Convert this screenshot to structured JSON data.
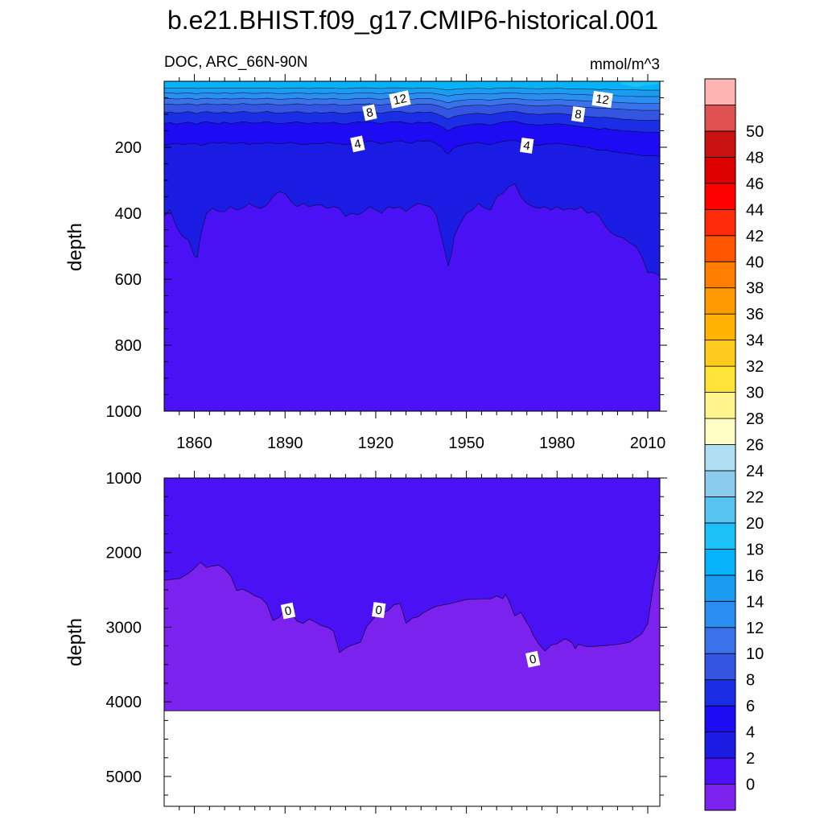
{
  "chart_data": [
    {
      "type": "contour",
      "title": "b.e21.BHIST.f09_g17.CMIP6-historical.001",
      "subtitle_left": "DOC, ARC_66N-90N",
      "subtitle_right": "mmol/m^3",
      "ylabel": "depth",
      "xlim": [
        1850,
        2014
      ],
      "ylim": [
        0,
        1000
      ],
      "x_ticks": [
        1860,
        1890,
        1920,
        1950,
        1980,
        2010
      ],
      "x_tick_labels": [
        "1860",
        "1890",
        "1920",
        "1950",
        "1980",
        "2010"
      ],
      "y_ticks": [
        200,
        400,
        600,
        800,
        1000
      ],
      "y_tick_labels": [
        "200",
        "400",
        "600",
        "800",
        "1000"
      ],
      "contour_labels": [
        {
          "text": "12",
          "year": 1928,
          "depth": 55
        },
        {
          "text": "12",
          "year": 1995,
          "depth": 55
        },
        {
          "text": "8",
          "year": 1918,
          "depth": 95
        },
        {
          "text": "8",
          "year": 1987,
          "depth": 100
        },
        {
          "text": "4",
          "year": 1914,
          "depth": 190
        },
        {
          "text": "4",
          "year": 1970,
          "depth": 195
        }
      ],
      "contour_profiles": {
        "x": [
          1850,
          1852,
          1854,
          1856,
          1858,
          1860,
          1861,
          1862,
          1864,
          1866,
          1868,
          1870,
          1872,
          1874,
          1876,
          1878,
          1880,
          1882,
          1884,
          1886,
          1888,
          1890,
          1892,
          1894,
          1896,
          1898,
          1900,
          1902,
          1904,
          1906,
          1908,
          1910,
          1912,
          1914,
          1916,
          1918,
          1920,
          1922,
          1924,
          1926,
          1928,
          1930,
          1932,
          1934,
          1936,
          1938,
          1940,
          1942,
          1943,
          1944,
          1945,
          1946,
          1948,
          1950,
          1952,
          1954,
          1956,
          1958,
          1960,
          1962,
          1964,
          1966,
          1968,
          1970,
          1972,
          1974,
          1976,
          1978,
          1980,
          1982,
          1984,
          1986,
          1988,
          1990,
          1992,
          1994,
          1996,
          1998,
          2000,
          2002,
          2004,
          2006,
          2008,
          2010,
          2012,
          2014
        ],
        "d2": [
          410,
          390,
          440,
          470,
          480,
          530,
          535,
          470,
          400,
          385,
          395,
          395,
          380,
          390,
          385,
          370,
          380,
          385,
          375,
          350,
          335,
          340,
          365,
          380,
          370,
          380,
          375,
          375,
          385,
          380,
          385,
          410,
          400,
          405,
          395,
          380,
          390,
          400,
          380,
          385,
          380,
          395,
          380,
          370,
          375,
          380,
          405,
          480,
          520,
          560,
          525,
          470,
          430,
          400,
          390,
          370,
          385,
          390,
          350,
          340,
          320,
          310,
          350,
          370,
          380,
          385,
          380,
          390,
          380,
          390,
          385,
          390,
          380,
          400,
          395,
          410,
          440,
          460,
          470,
          475,
          490,
          500,
          530,
          580,
          580,
          590
        ],
        "d4": [
          195,
          190,
          188,
          192,
          190,
          188,
          190,
          195,
          190,
          185,
          188,
          185,
          190,
          188,
          186,
          192,
          188,
          190,
          185,
          188,
          190,
          188,
          185,
          190,
          192,
          190,
          188,
          190,
          185,
          188,
          190,
          193,
          190,
          187,
          185,
          180,
          185,
          190,
          185,
          183,
          180,
          185,
          188,
          180,
          182,
          180,
          190,
          200,
          215,
          220,
          210,
          200,
          195,
          190,
          188,
          185,
          190,
          193,
          186,
          182,
          180,
          178,
          185,
          190,
          192,
          195,
          190,
          190,
          188,
          190,
          193,
          195,
          198,
          200,
          205,
          210,
          208,
          213,
          215,
          218,
          220,
          222,
          225,
          225,
          225,
          228
        ],
        "d6": [
          128,
          125,
          130,
          127,
          124,
          128,
          130,
          125,
          122,
          126,
          128,
          124,
          128,
          126,
          122,
          125,
          127,
          125,
          122,
          126,
          128,
          127,
          125,
          123,
          126,
          128,
          125,
          127,
          126,
          124,
          128,
          130,
          126,
          123,
          124,
          122,
          126,
          128,
          124,
          123,
          122,
          126,
          128,
          124,
          126,
          124,
          130,
          138,
          145,
          150,
          145,
          140,
          136,
          133,
          130,
          128,
          130,
          133,
          128,
          124,
          122,
          121,
          126,
          130,
          131,
          133,
          131,
          130,
          128,
          130,
          133,
          135,
          138,
          140,
          142,
          145,
          143,
          146,
          148,
          150,
          151,
          152,
          154,
          154,
          154,
          155
        ],
        "d8": [
          95,
          93,
          96,
          95,
          92,
          96,
          98,
          94,
          92,
          95,
          96,
          93,
          96,
          94,
          91,
          94,
          96,
          94,
          91,
          95,
          97,
          95,
          94,
          92,
          95,
          97,
          94,
          96,
          95,
          93,
          97,
          98,
          95,
          93,
          93,
          92,
          95,
          97,
          93,
          92,
          91,
          95,
          97,
          93,
          95,
          93,
          98,
          105,
          110,
          114,
          110,
          106,
          103,
          100,
          98,
          97,
          99,
          101,
          97,
          94,
          92,
          91,
          95,
          98,
          99,
          101,
          99,
          98,
          97,
          99,
          101,
          103,
          105,
          107,
          108,
          110,
          109,
          111,
          113,
          115,
          116,
          117,
          118,
          118,
          118,
          119
        ],
        "d10": [
          70,
          69,
          71,
          70,
          68,
          71,
          73,
          70,
          68,
          70,
          71,
          69,
          71,
          70,
          67,
          70,
          71,
          70,
          68,
          70,
          72,
          71,
          70,
          68,
          70,
          72,
          70,
          71,
          71,
          69,
          72,
          73,
          71,
          69,
          69,
          68,
          71,
          72,
          69,
          68,
          68,
          71,
          72,
          69,
          70,
          69,
          73,
          78,
          82,
          85,
          82,
          79,
          76,
          74,
          73,
          72,
          73,
          75,
          72,
          70,
          68,
          68,
          71,
          73,
          74,
          75,
          74,
          73,
          72,
          73,
          75,
          76,
          78,
          79,
          80,
          82,
          81,
          83,
          84,
          85,
          86,
          87,
          88,
          88,
          88,
          88
        ],
        "d12": [
          53,
          52,
          54,
          53,
          51,
          54,
          55,
          53,
          51,
          53,
          54,
          52,
          54,
          53,
          51,
          53,
          54,
          53,
          51,
          53,
          55,
          54,
          53,
          51,
          53,
          55,
          53,
          54,
          54,
          52,
          55,
          56,
          54,
          52,
          52,
          51,
          54,
          55,
          52,
          51,
          51,
          54,
          55,
          52,
          53,
          52,
          56,
          60,
          63,
          65,
          63,
          60,
          58,
          56,
          55,
          55,
          56,
          57,
          55,
          53,
          52,
          52,
          54,
          56,
          56,
          57,
          56,
          56,
          55,
          56,
          57,
          58,
          59,
          60,
          61,
          62,
          62,
          63,
          64,
          65,
          66,
          66,
          67,
          67,
          67,
          67
        ],
        "d14": [
          36,
          35,
          37,
          36,
          35,
          37,
          38,
          36,
          35,
          36,
          37,
          35,
          37,
          36,
          34,
          36,
          37,
          36,
          35,
          36,
          38,
          37,
          36,
          35,
          36,
          38,
          36,
          37,
          37,
          35,
          38,
          38,
          37,
          35,
          35,
          35,
          37,
          38,
          35,
          35,
          34,
          37,
          38,
          35,
          36,
          35,
          38,
          41,
          43,
          45,
          43,
          41,
          40,
          38,
          38,
          37,
          38,
          39,
          37,
          36,
          35,
          35,
          37,
          38,
          38,
          39,
          38,
          38,
          37,
          38,
          39,
          40,
          40,
          41,
          42,
          43,
          42,
          43,
          44,
          45,
          45,
          46,
          46,
          46,
          46,
          46
        ],
        "d16": [
          21,
          20,
          21,
          21,
          20,
          21,
          22,
          21,
          20,
          21,
          21,
          20,
          21,
          21,
          20,
          21,
          21,
          21,
          20,
          21,
          22,
          21,
          21,
          20,
          21,
          22,
          21,
          21,
          21,
          20,
          22,
          22,
          21,
          20,
          20,
          20,
          21,
          22,
          20,
          20,
          20,
          21,
          22,
          20,
          21,
          20,
          22,
          24,
          25,
          26,
          25,
          24,
          23,
          22,
          22,
          21,
          22,
          23,
          21,
          21,
          20,
          20,
          21,
          22,
          22,
          23,
          22,
          22,
          21,
          22,
          23,
          23,
          23,
          24,
          24,
          25,
          24,
          25,
          25,
          26,
          26,
          26,
          27,
          27,
          27,
          27
        ]
      }
    },
    {
      "type": "contour",
      "ylabel": "depth",
      "xlim": [
        1850,
        2014
      ],
      "ylim": [
        1000,
        5400
      ],
      "x_ticks": [
        1860,
        1890,
        1920,
        1950,
        1980,
        2010
      ],
      "y_ticks": [
        1000,
        2000,
        3000,
        4000,
        5000
      ],
      "y_tick_labels": [
        "1000",
        "2000",
        "3000",
        "4000",
        "5000"
      ],
      "ocean_floor_depth": 4120,
      "contour_labels": [
        {
          "text": "0",
          "year": 1891,
          "depth": 2780
        },
        {
          "text": "0",
          "year": 1921,
          "depth": 2770
        },
        {
          "text": "0",
          "year": 1972,
          "depth": 3430
        }
      ],
      "contour_profiles": {
        "x": [
          1850,
          1855,
          1858,
          1860,
          1862,
          1864,
          1866,
          1868,
          1870,
          1872,
          1874,
          1876,
          1878,
          1880,
          1882,
          1884,
          1886,
          1888,
          1890,
          1892,
          1894,
          1896,
          1898,
          1900,
          1902,
          1904,
          1906,
          1908,
          1910,
          1912,
          1913,
          1915,
          1917,
          1920,
          1922,
          1924,
          1926,
          1928,
          1929,
          1930,
          1932,
          1934,
          1936,
          1938,
          1940,
          1945,
          1950,
          1955,
          1958,
          1960,
          1962,
          1963,
          1964,
          1966,
          1968,
          1970,
          1971,
          1972,
          1974,
          1976,
          1978,
          1980,
          1982,
          1983,
          1985,
          1986,
          1987,
          1990,
          1995,
          2000,
          2004,
          2008,
          2010,
          2012,
          2014
        ],
        "d0": [
          2370,
          2350,
          2280,
          2210,
          2130,
          2200,
          2180,
          2170,
          2220,
          2310,
          2510,
          2490,
          2530,
          2580,
          2610,
          2690,
          2910,
          2870,
          2770,
          2810,
          2920,
          2950,
          2890,
          2930,
          2980,
          3000,
          3050,
          3340,
          3280,
          3240,
          3230,
          3200,
          2990,
          2850,
          2810,
          2780,
          2700,
          2680,
          2800,
          2950,
          2880,
          2860,
          2800,
          2760,
          2720,
          2680,
          2630,
          2620,
          2620,
          2580,
          2620,
          2560,
          2640,
          2850,
          2800,
          2940,
          3000,
          3100,
          3230,
          3320,
          3240,
          3220,
          3170,
          3160,
          3210,
          3290,
          3230,
          3260,
          3250,
          3230,
          3200,
          3090,
          2950,
          2400,
          2000
        ]
      }
    }
  ],
  "colorbar": {
    "labels": [
      "0",
      "2",
      "4",
      "6",
      "8",
      "10",
      "12",
      "14",
      "16",
      "18",
      "20",
      "22",
      "24",
      "26",
      "28",
      "30",
      "32",
      "34",
      "36",
      "38",
      "40",
      "42",
      "44",
      "46",
      "48",
      "50"
    ],
    "colors": [
      "#7b22ee",
      "#4a11f5",
      "#1b1ce3",
      "#1d0cf3",
      "#1b2ee5",
      "#3355e2",
      "#3a72ec",
      "#2b8ef2",
      "#1a9cf2",
      "#06b2fa",
      "#1ec0fa",
      "#57c3f1",
      "#8acbee",
      "#b0def3",
      "#ffffc4",
      "#fff58c",
      "#ffe338",
      "#ffcb1f",
      "#ffb300",
      "#ff9a02",
      "#ff7d00",
      "#ff5400",
      "#ff2a0a",
      "#ff0000",
      "#dd0000",
      "#c91111",
      "#e05252",
      "#ffb4b4"
    ]
  }
}
